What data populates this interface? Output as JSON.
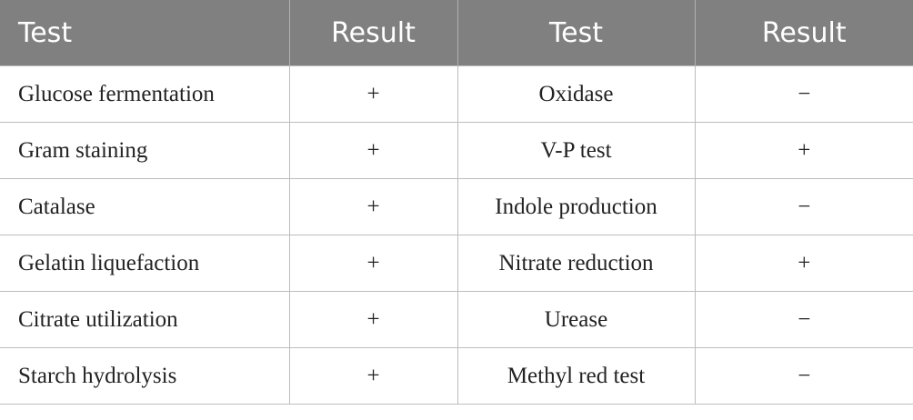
{
  "table": {
    "header": [
      "Test",
      "Result",
      "Test",
      "Result"
    ],
    "rows": [
      [
        "Glucose fermentation",
        "+",
        "Oxidase",
        "−"
      ],
      [
        "Gram staining",
        "+",
        "V-P test",
        "+"
      ],
      [
        "Catalase",
        "+",
        "Indole production",
        "−"
      ],
      [
        "Gelatin liquefaction",
        "+",
        "Nitrate reduction",
        "+"
      ],
      [
        "Citrate utilization",
        "+",
        "Urease",
        "−"
      ],
      [
        "Starch hydrolysis",
        "+",
        "Methyl red test",
        "−"
      ]
    ]
  }
}
